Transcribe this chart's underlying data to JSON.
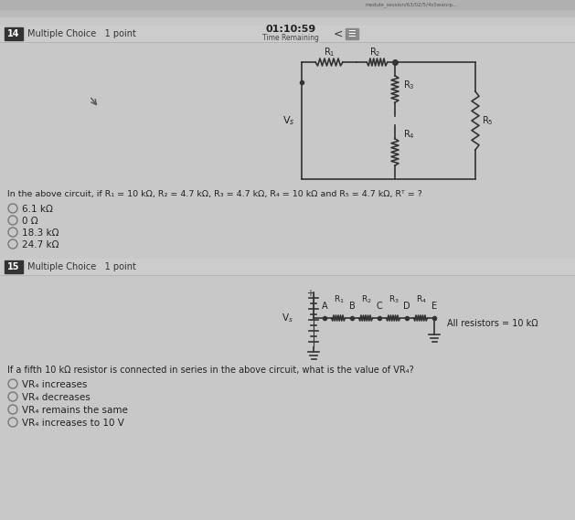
{
  "bg_color": "#c8c8c8",
  "page_bg": "#d8d8d8",
  "q14_number": "14",
  "q14_type": "Multiple Choice   1 point",
  "timer": "01:10:59",
  "timer_label": "Time Remaining",
  "q14_body": "In the above circuit, if R₁ = 10 kΩ, R₂ = 4.7 kΩ, R₃ = 4.7 kΩ, R₄ = 10 kΩ and R₅ = 4.7 kΩ, Rᵀ = ?",
  "q14_options": [
    "6.1 kΩ",
    "0 Ω",
    "18.3 kΩ",
    "24.7 kΩ"
  ],
  "q15_number": "15",
  "q15_type": "Multiple Choice   1 point",
  "q15_circuit_label": "All resistors = 10 kΩ",
  "q15_body": "If a fifth 10 kΩ resistor is connected in series in the above circuit, what is the value of VR₄?",
  "q15_options": [
    "VR₄ increases",
    "VR₄ decreases",
    "VR₄ remains the same",
    "VR₄ increases to 10 V"
  ],
  "text_color": "#222222",
  "wire_color": "#333333",
  "resistor_color": "#333333",
  "option_circle_color": "#888888",
  "number_bg": "#2a2a2a",
  "header_line_color": "#aaaaaa"
}
